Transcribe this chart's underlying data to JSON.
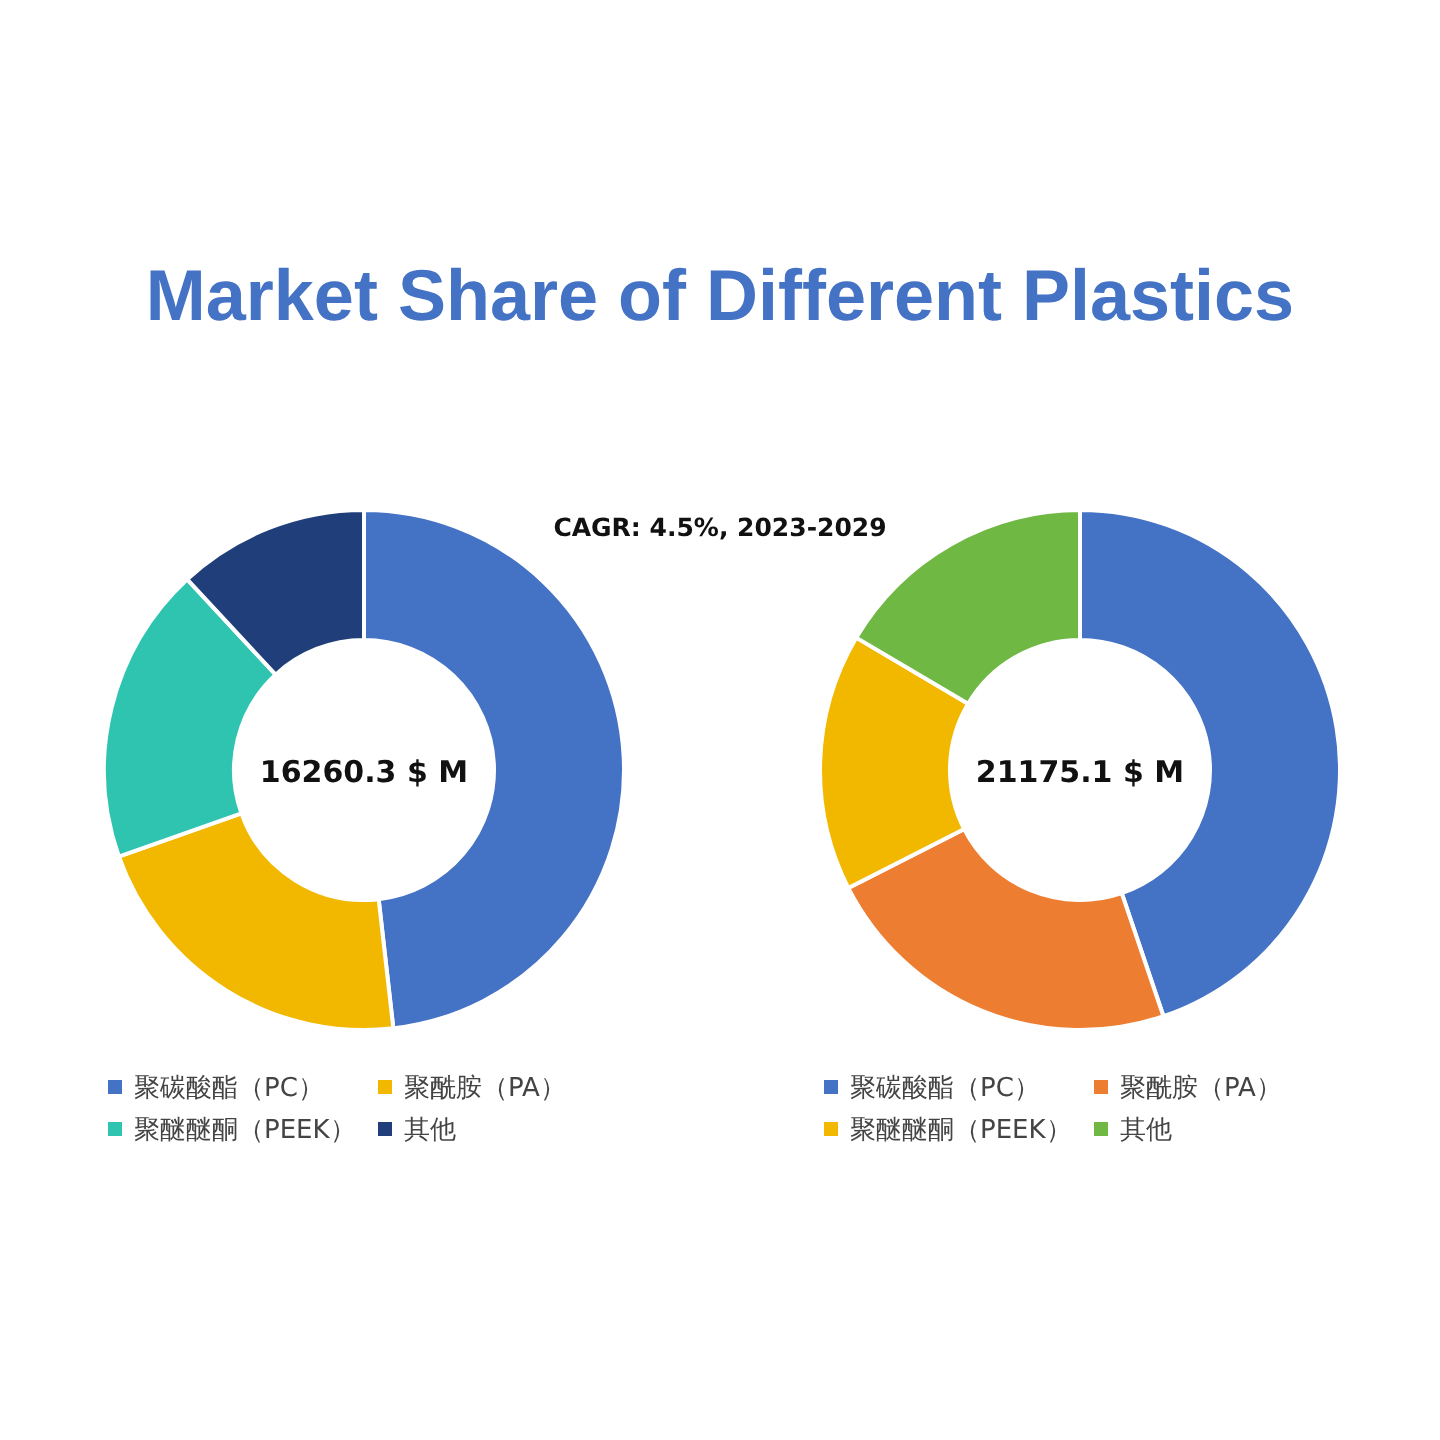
{
  "chart_data": [
    {
      "type": "donut",
      "title": "Market Share of Different Plastics",
      "subtitle": "CAGR:  4.5%, 2023-2029",
      "annotations": [
        "16260.3  $ M"
      ],
      "legend": "bottom",
      "categories": [
        "聚碳酸酯（PC）",
        "聚酰胺（PA）",
        "聚醚醚酮（PEEK）",
        "其他"
      ],
      "values": [
        48.2,
        21.4,
        18.5,
        11.9
      ],
      "colors": [
        "#4472c4",
        "#f2b800",
        "#2ec4b0",
        "#203f7a"
      ]
    },
    {
      "type": "donut",
      "annotations": [
        "21175.1  $ M"
      ],
      "legend": "bottom",
      "categories": [
        "聚碳酸酯（PC）",
        "聚酰胺（PA）",
        "聚醚醚酮（PEEK）",
        "其他"
      ],
      "values": [
        44.8,
        22.7,
        16.0,
        16.5
      ],
      "colors": [
        "#4472c4",
        "#ed7d31",
        "#f2b800",
        "#70b844"
      ]
    }
  ]
}
